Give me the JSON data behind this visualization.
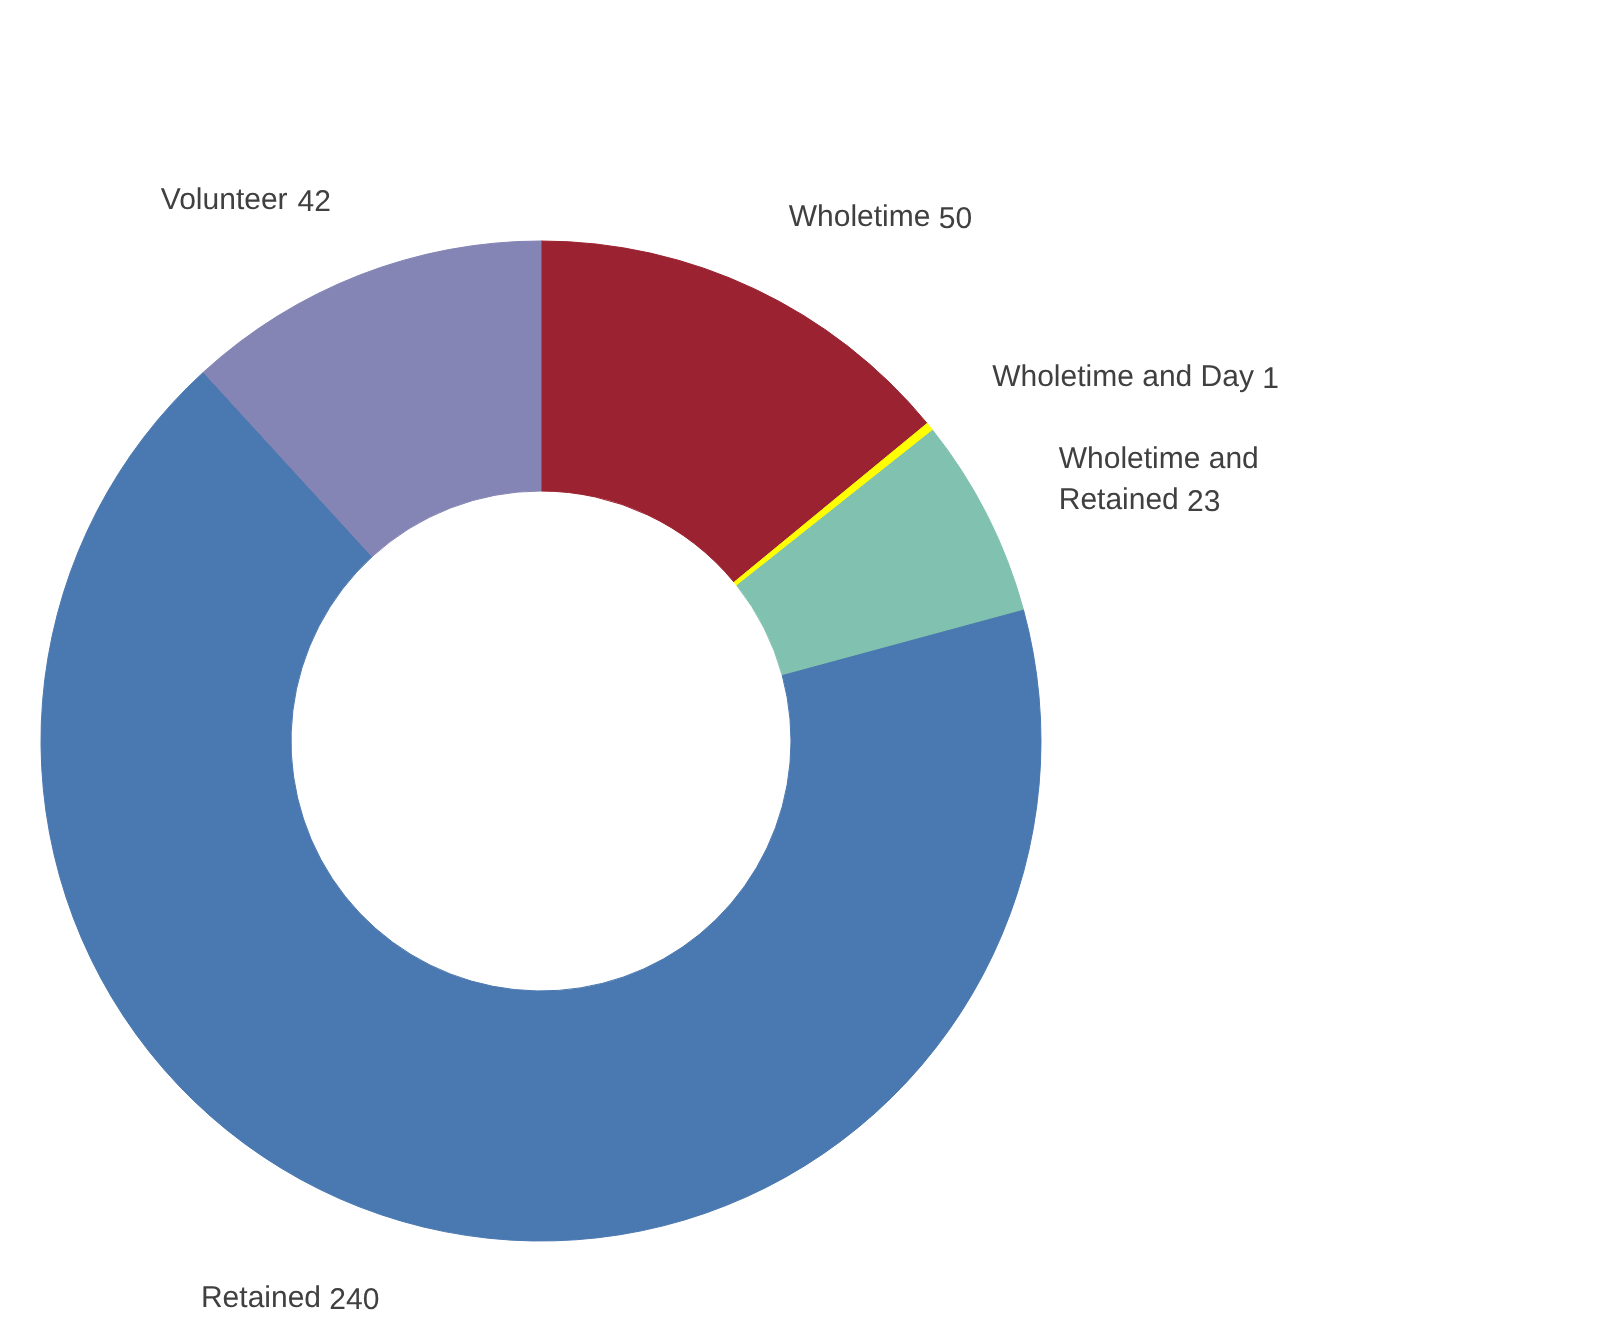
{
  "chart_data": {
    "type": "donut",
    "categories": [
      "Wholetime",
      "Wholetime and Day",
      "Wholetime and Retained",
      "Retained",
      "Volunteer"
    ],
    "values": [
      50,
      1,
      23,
      240,
      42
    ],
    "colors": [
      "#9b2230",
      "#ffff00",
      "#80c1b0",
      "#4a78b0",
      "#8585b5"
    ],
    "data_labels": true
  }
}
